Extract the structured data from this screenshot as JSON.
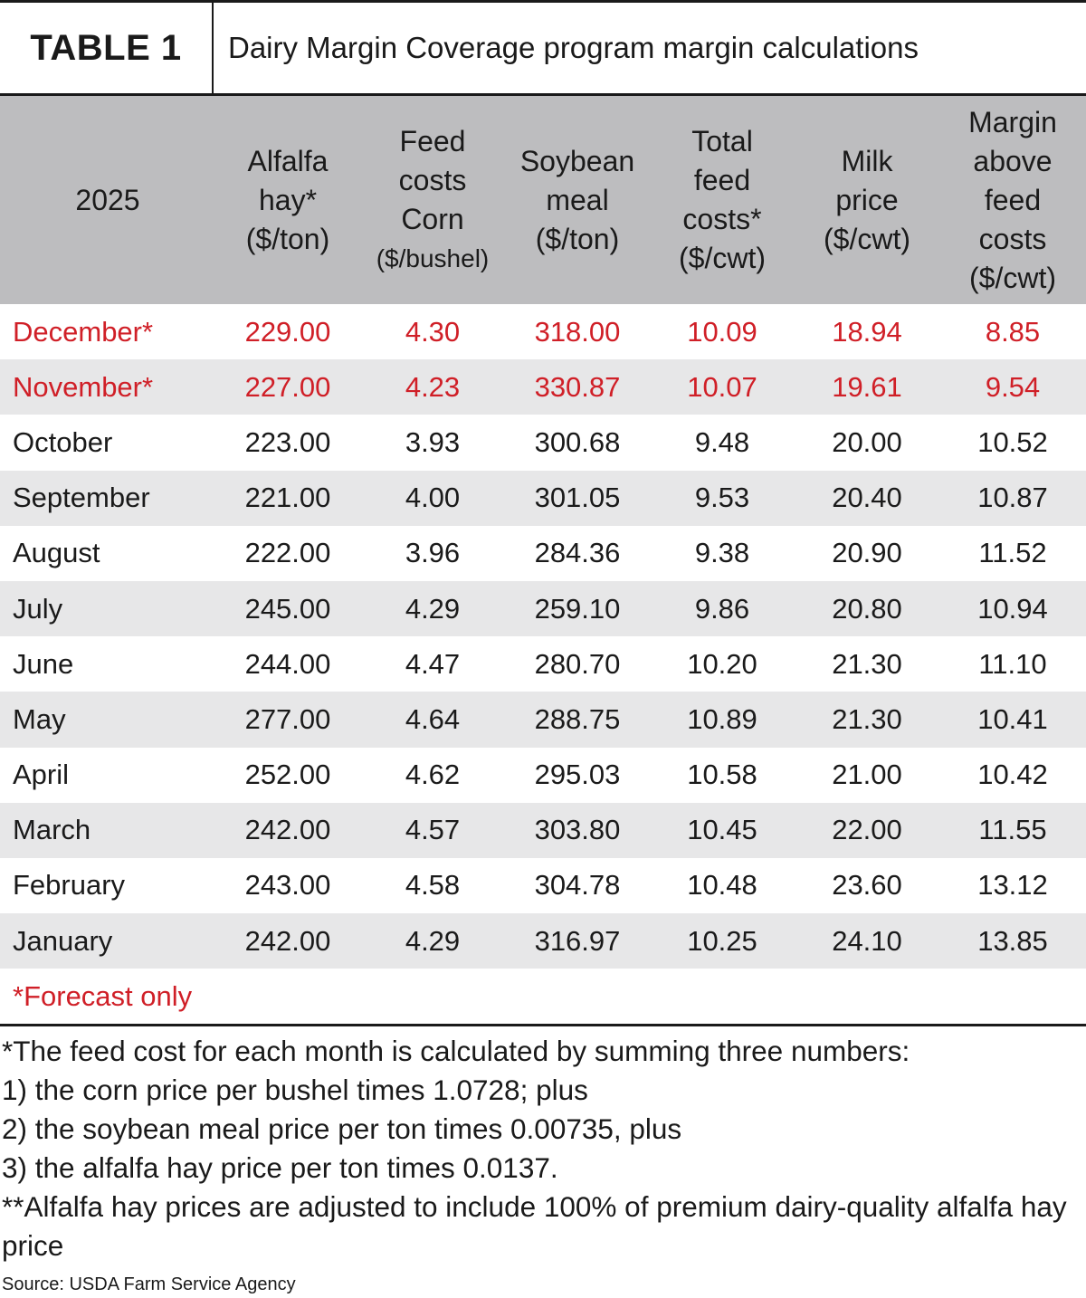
{
  "title": {
    "label": "TABLE 1",
    "text": "Dairy Margin Coverage program margin calculations"
  },
  "table": {
    "headers": {
      "year": "2025",
      "alfalfa": [
        "Alfalfa",
        "hay*",
        "($/ton)"
      ],
      "corn": [
        "Feed",
        "costs",
        "Corn",
        "($/bushel)"
      ],
      "soybean": [
        "Soybean",
        "meal",
        "($/ton)"
      ],
      "total_feed": [
        "Total",
        "feed",
        "costs*",
        "($/cwt)"
      ],
      "milk": [
        "Milk",
        "price",
        "($/cwt)"
      ],
      "margin": [
        "Margin",
        "above",
        "feed",
        "costs",
        "($/cwt)"
      ]
    },
    "rows": [
      {
        "month": "December*",
        "alfalfa": "229.00",
        "corn": "4.30",
        "soybean": "318.00",
        "total_feed": "10.09",
        "milk": "18.94",
        "margin": "8.85",
        "forecast": true
      },
      {
        "month": "November*",
        "alfalfa": "227.00",
        "corn": "4.23",
        "soybean": "330.87",
        "total_feed": "10.07",
        "milk": "19.61",
        "margin": "9.54",
        "forecast": true
      },
      {
        "month": "October",
        "alfalfa": "223.00",
        "corn": "3.93",
        "soybean": "300.68",
        "total_feed": "9.48",
        "milk": "20.00",
        "margin": "10.52",
        "forecast": false
      },
      {
        "month": "September",
        "alfalfa": "221.00",
        "corn": "4.00",
        "soybean": "301.05",
        "total_feed": "9.53",
        "milk": "20.40",
        "margin": "10.87",
        "forecast": false
      },
      {
        "month": "August",
        "alfalfa": "222.00",
        "corn": "3.96",
        "soybean": "284.36",
        "total_feed": "9.38",
        "milk": "20.90",
        "margin": "11.52",
        "forecast": false
      },
      {
        "month": "July",
        "alfalfa": "245.00",
        "corn": "4.29",
        "soybean": "259.10",
        "total_feed": "9.86",
        "milk": "20.80",
        "margin": "10.94",
        "forecast": false
      },
      {
        "month": "June",
        "alfalfa": "244.00",
        "corn": "4.47",
        "soybean": "280.70",
        "total_feed": "10.20",
        "milk": "21.30",
        "margin": "11.10",
        "forecast": false
      },
      {
        "month": "May",
        "alfalfa": "277.00",
        "corn": "4.64",
        "soybean": "288.75",
        "total_feed": "10.89",
        "milk": "21.30",
        "margin": "10.41",
        "forecast": false
      },
      {
        "month": "April",
        "alfalfa": "252.00",
        "corn": "4.62",
        "soybean": "295.03",
        "total_feed": "10.58",
        "milk": "21.00",
        "margin": "10.42",
        "forecast": false
      },
      {
        "month": "March",
        "alfalfa": "242.00",
        "corn": "4.57",
        "soybean": "303.80",
        "total_feed": "10.45",
        "milk": "22.00",
        "margin": "11.55",
        "forecast": false
      },
      {
        "month": "February",
        "alfalfa": "243.00",
        "corn": "4.58",
        "soybean": "304.78",
        "total_feed": "10.48",
        "milk": "23.60",
        "margin": "13.12",
        "forecast": false
      },
      {
        "month": "January",
        "alfalfa": "242.00",
        "corn": "4.29",
        "soybean": "316.97",
        "total_feed": "10.25",
        "milk": "24.10",
        "margin": "13.85",
        "forecast": false
      }
    ],
    "forecast_note": "*Forecast only"
  },
  "footnotes": [
    "*The feed cost for each month is calculated by summing three numbers:",
    "1) the corn price per bushel times 1.0728; plus",
    "2) the soybean meal price per ton times 0.00735, plus",
    "3) the alfalfa hay price per ton times 0.0137.",
    "**Alfalfa hay prices are adjusted to include 100% of premium dairy-quality alfalfa hay price"
  ],
  "source": "Source: USDA Farm Service Agency",
  "colors": {
    "forecast_red": "#d01f27",
    "header_gray": "#bdbdbf",
    "shade_gray": "#e7e7e8",
    "rule": "#1a1a1a"
  }
}
